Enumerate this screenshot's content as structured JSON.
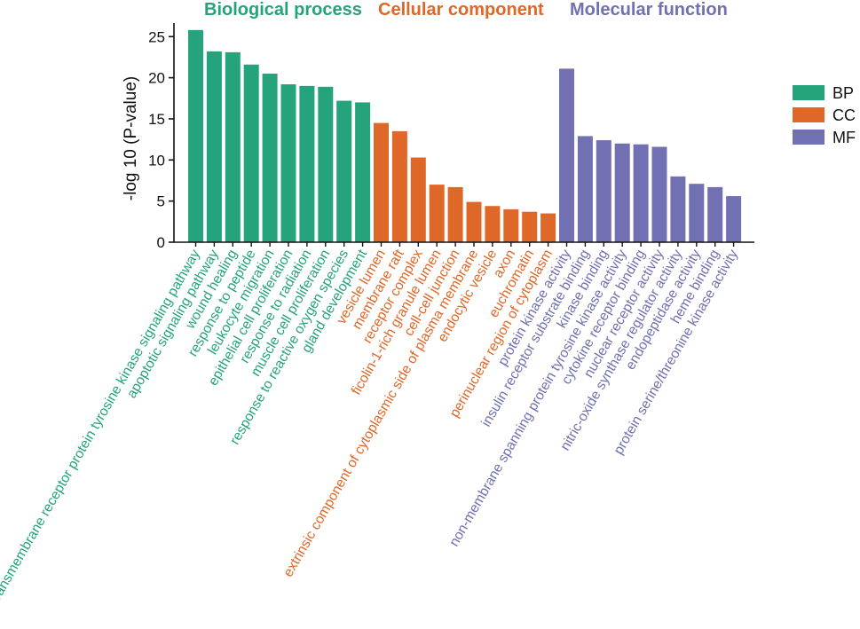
{
  "chart_data": {
    "type": "bar",
    "ylabel": "-log 10 (P-value)",
    "ylim": [
      0,
      26
    ],
    "yticks": [
      0,
      5,
      10,
      15,
      20,
      25
    ],
    "group_titles": [
      {
        "key": "BP",
        "title": "Biological process",
        "color": "#24a37c"
      },
      {
        "key": "CC",
        "title": "Cellular component",
        "color": "#df6727"
      },
      {
        "key": "MF",
        "title": "Molecular function",
        "color": "#7070b2"
      }
    ],
    "legend": [
      {
        "key": "BP",
        "label": "BP",
        "color": "#24a37c"
      },
      {
        "key": "CC",
        "label": "CC",
        "color": "#df6727"
      },
      {
        "key": "MF",
        "label": "MF",
        "color": "#7070b2"
      }
    ],
    "bars": [
      {
        "group": "BP",
        "label": "transmembrane receptor protein tyrosine kinase signaling pathway",
        "value": 25.8
      },
      {
        "group": "BP",
        "label": "apoptotic signaling pathway",
        "value": 23.2
      },
      {
        "group": "BP",
        "label": "wound healing",
        "value": 23.1
      },
      {
        "group": "BP",
        "label": "response to peptide",
        "value": 21.6
      },
      {
        "group": "BP",
        "label": "leukocyte migration",
        "value": 20.5
      },
      {
        "group": "BP",
        "label": "epithelial cell proliferation",
        "value": 19.2
      },
      {
        "group": "BP",
        "label": "response to radiation",
        "value": 19.0
      },
      {
        "group": "BP",
        "label": "muscle cell proliferation",
        "value": 18.9
      },
      {
        "group": "BP",
        "label": "response to reactive oxygen species",
        "value": 17.2
      },
      {
        "group": "BP",
        "label": "gland development",
        "value": 17.0
      },
      {
        "group": "CC",
        "label": "vesicle lumen",
        "value": 14.5
      },
      {
        "group": "CC",
        "label": "membrane raft",
        "value": 13.5
      },
      {
        "group": "CC",
        "label": "receptor complex",
        "value": 10.3
      },
      {
        "group": "CC",
        "label": "ficolin-1-rich granule lumen",
        "value": 7.0
      },
      {
        "group": "CC",
        "label": "cell-cell junction",
        "value": 6.7
      },
      {
        "group": "CC",
        "label": "extrinsic component of cytoplasmic side of plasma membrane",
        "value": 4.9
      },
      {
        "group": "CC",
        "label": "endocytic vesicle",
        "value": 4.4
      },
      {
        "group": "CC",
        "label": "axon",
        "value": 4.0
      },
      {
        "group": "CC",
        "label": "euchromatin",
        "value": 3.7
      },
      {
        "group": "CC",
        "label": "perinuclear region of cytoplasm",
        "value": 3.5
      },
      {
        "group": "MF",
        "label": "protein kinase activity",
        "value": 21.1
      },
      {
        "group": "MF",
        "label": "insulin receptor substrate binding",
        "value": 12.9
      },
      {
        "group": "MF",
        "label": "kinase binding",
        "value": 12.4
      },
      {
        "group": "MF",
        "label": "non-membrane spanning protein tyrosine kinase activity",
        "value": 12.0
      },
      {
        "group": "MF",
        "label": "cytokine receptor binding",
        "value": 11.9
      },
      {
        "group": "MF",
        "label": "nuclear receptor activity",
        "value": 11.6
      },
      {
        "group": "MF",
        "label": "nitric-oxide synthase regulator activity",
        "value": 8.0
      },
      {
        "group": "MF",
        "label": "endopeptidase activity",
        "value": 7.1
      },
      {
        "group": "MF",
        "label": "heme binding",
        "value": 6.7
      },
      {
        "group": "MF",
        "label": "protein serine/threonine kinase activity",
        "value": 5.6
      }
    ]
  }
}
